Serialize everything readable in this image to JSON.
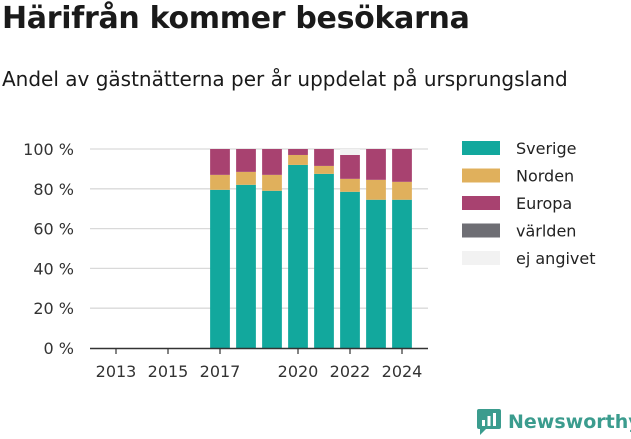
{
  "header": {
    "title": "Härifrån kommer besökarna",
    "subtitle": "Andel av gästnätterna per år uppdelat på ursprungsland"
  },
  "brand": {
    "name": "Newsworthy"
  },
  "chart_data": {
    "type": "bar",
    "stacked": true,
    "title": "Härifrån kommer besökarna",
    "subtitle": "Andel av gästnätterna per år uppdelat på ursprungsland",
    "xlabel": "",
    "ylabel": "",
    "ylim": [
      0,
      100
    ],
    "y_ticks": [
      0,
      20,
      40,
      60,
      80,
      100
    ],
    "y_tick_labels": [
      "0 %",
      "20 %",
      "40 %",
      "60 %",
      "80 %",
      "100 %"
    ],
    "x_ticks": [
      2013,
      2015,
      2017,
      2020,
      2022,
      2024
    ],
    "x_tick_labels": [
      "2013",
      "2015",
      "2017",
      "2020",
      "2022",
      "2024"
    ],
    "xlim": [
      2012,
      2025
    ],
    "grid": true,
    "legend_position": "right",
    "categories": [
      2017,
      2018,
      2019,
      2020,
      2021,
      2022,
      2023,
      2024
    ],
    "series": [
      {
        "name": "Sverige",
        "color": "#12a89d",
        "values": [
          79.5,
          82,
          79,
          92,
          87.5,
          78.5,
          74.5,
          74.5
        ]
      },
      {
        "name": "Norden",
        "color": "#e0b05c",
        "values": [
          7.5,
          6.5,
          8,
          5,
          4,
          6.5,
          10,
          9
        ]
      },
      {
        "name": "Europa",
        "color": "#a84270",
        "values": [
          13,
          11.5,
          13,
          3,
          8.5,
          12,
          15.5,
          16.5
        ]
      },
      {
        "name": "världen",
        "color": "#6e6e74",
        "values": [
          0,
          0,
          0,
          0,
          0,
          0,
          0,
          0
        ]
      },
      {
        "name": "ej angivet",
        "color": "#f2f2f2",
        "values": [
          0,
          0,
          0,
          0,
          0,
          3,
          0,
          0
        ]
      }
    ]
  }
}
